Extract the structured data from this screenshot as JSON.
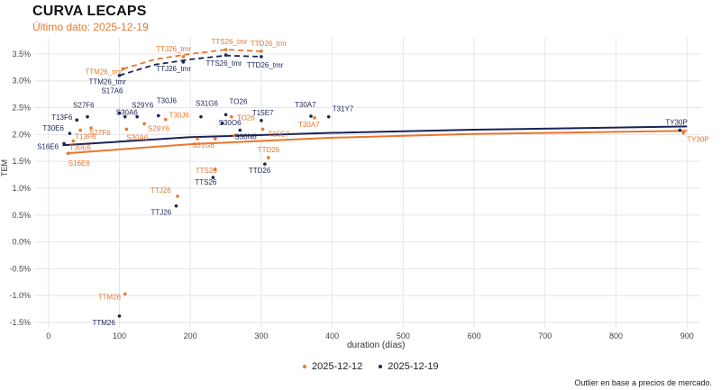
{
  "title": "CURVA LECAPS",
  "subtitle": "Último dato: 2025-12-19",
  "caption": "Outlier en base a precios de mercado.",
  "colors": {
    "orange": "#e8772e",
    "navy": "#1a2456",
    "grid": "#e6e6e6"
  },
  "chart_data": {
    "type": "scatter",
    "title": "CURVA LECAPS",
    "xlabel": "duration (días)",
    "ylabel": "TEM",
    "xlim": [
      -20,
      920
    ],
    "ylim": [
      -1.6,
      3.8
    ],
    "x_ticks": [
      0,
      100,
      200,
      300,
      400,
      500,
      600,
      700,
      800,
      900
    ],
    "y_ticks": [
      -1.5,
      -1.0,
      -0.5,
      0.0,
      0.5,
      1.0,
      1.5,
      2.0,
      2.5,
      3.0,
      3.5
    ],
    "y_tick_labels": [
      "-1.5%",
      "-1.0%",
      "-0.5%",
      "0.0%",
      "0.5%",
      "1.0%",
      "1.5%",
      "2.0%",
      "2.5%",
      "3.0%",
      "3.5%"
    ],
    "legend": [
      "2025-12-12",
      "2025-12-19"
    ],
    "series": [
      {
        "name": "2025-12-19",
        "color": "navy",
        "points": [
          {
            "label": "S16E6",
            "x": 22,
            "y": 1.83
          },
          {
            "label": "T30E6",
            "x": 30,
            "y": 2.02
          },
          {
            "label": "T13F6",
            "x": 40,
            "y": 2.27
          },
          {
            "label": "S27F6",
            "x": 55,
            "y": 2.33
          },
          {
            "label": "S17A6",
            "x": 100,
            "y": 2.4
          },
          {
            "label": "S30A6",
            "x": 108,
            "y": 2.33
          },
          {
            "label": "S29Y6",
            "x": 125,
            "y": 2.33
          },
          {
            "label": "T30J6",
            "x": 155,
            "y": 2.35
          },
          {
            "label": "S31G6",
            "x": 215,
            "y": 2.33
          },
          {
            "label": "S30O6",
            "x": 245,
            "y": 2.21
          },
          {
            "label": "TO26",
            "x": 250,
            "y": 2.37
          },
          {
            "label": "S30N6",
            "x": 270,
            "y": 2.08
          },
          {
            "label": "T15E7",
            "x": 300,
            "y": 2.26
          },
          {
            "label": "T30A7",
            "x": 370,
            "y": 2.34
          },
          {
            "label": "T31Y7",
            "x": 395,
            "y": 2.33
          },
          {
            "label": "TY30P",
            "x": 890,
            "y": 2.08
          },
          {
            "label": "TTS26",
            "x": 232,
            "y": 1.2
          },
          {
            "label": "TTD26",
            "x": 305,
            "y": 1.45
          },
          {
            "label": "TTJ26",
            "x": 180,
            "y": 0.67
          },
          {
            "label": "TTM26",
            "x": 100,
            "y": -1.38
          },
          {
            "label": "TTM26_tmr",
            "x": 100,
            "y": 3.1
          },
          {
            "label": "TTJ26_tmr",
            "x": 190,
            "y": 3.35
          },
          {
            "label": "TTS26_tmr",
            "x": 250,
            "y": 3.48
          },
          {
            "label": "TTD26_tmr",
            "x": 300,
            "y": 3.45
          }
        ],
        "fit": [
          [
            20,
            1.8
          ],
          [
            200,
            1.95
          ],
          [
            400,
            2.03
          ],
          [
            600,
            2.09
          ],
          [
            800,
            2.13
          ],
          [
            900,
            2.15
          ]
        ]
      },
      {
        "name": "2025-12-12",
        "color": "orange",
        "points": [
          {
            "label": "S16E6",
            "x": 28,
            "y": 1.65
          },
          {
            "label": "T30E6",
            "x": 35,
            "y": 1.88
          },
          {
            "label": "T13F6",
            "x": 45,
            "y": 2.08
          },
          {
            "label": "S27F6",
            "x": 60,
            "y": 2.12
          },
          {
            "label": "S30A6",
            "x": 110,
            "y": 2.1
          },
          {
            "label": "S29Y6",
            "x": 135,
            "y": 2.2
          },
          {
            "label": "T30J6",
            "x": 165,
            "y": 2.28
          },
          {
            "label": "S31G6",
            "x": 210,
            "y": 1.92
          },
          {
            "label": "S30O6",
            "x": 235,
            "y": 1.92
          },
          {
            "label": "TO26",
            "x": 258,
            "y": 2.33
          },
          {
            "label": "S30N6",
            "x": 262,
            "y": 1.98
          },
          {
            "label": "T15E7",
            "x": 302,
            "y": 2.1
          },
          {
            "label": "T30A7",
            "x": 375,
            "y": 2.31
          },
          {
            "label": "TY30P",
            "x": 895,
            "y": 2.03
          },
          {
            "label": "TTS26",
            "x": 235,
            "y": 1.35
          },
          {
            "label": "TTD26",
            "x": 310,
            "y": 1.57
          },
          {
            "label": "TTJ26",
            "x": 182,
            "y": 0.85
          },
          {
            "label": "TTM26",
            "x": 108,
            "y": -0.97
          },
          {
            "label": "TTM26_tmr",
            "x": 105,
            "y": 3.22
          },
          {
            "label": "TTJ26_tmr",
            "x": 190,
            "y": 3.45
          },
          {
            "label": "TTS26_tmr",
            "x": 250,
            "y": 3.58
          },
          {
            "label": "TTD26_tmr",
            "x": 300,
            "y": 3.55
          }
        ],
        "fit": [
          [
            25,
            1.65
          ],
          [
            200,
            1.82
          ],
          [
            400,
            1.94
          ],
          [
            600,
            2.01
          ],
          [
            800,
            2.05
          ],
          [
            900,
            2.07
          ]
        ]
      }
    ],
    "tmr_curves": [
      {
        "series": "2025-12-19",
        "points": [
          [
            100,
            3.1
          ],
          [
            150,
            3.3
          ],
          [
            200,
            3.4
          ],
          [
            250,
            3.47
          ],
          [
            300,
            3.45
          ]
        ]
      },
      {
        "series": "2025-12-12",
        "points": [
          [
            105,
            3.22
          ],
          [
            150,
            3.4
          ],
          [
            200,
            3.5
          ],
          [
            250,
            3.58
          ],
          [
            300,
            3.55
          ]
        ]
      }
    ],
    "annotations": [
      {
        "series": "2025-12-19",
        "text": "S16E6"
      },
      {
        "series": "2025-12-19",
        "text": "T30E6"
      },
      {
        "series": "2025-12-19",
        "text": "T13F6"
      },
      {
        "series": "2025-12-19",
        "text": "S27F6"
      },
      {
        "series": "2025-12-19",
        "text": "S17A6"
      },
      {
        "series": "2025-12-19",
        "text": "S30A6"
      },
      {
        "series": "2025-12-19",
        "text": "S29Y6"
      },
      {
        "series": "2025-12-19",
        "text": "T30J6"
      },
      {
        "series": "2025-12-19",
        "text": "S31G6"
      },
      {
        "series": "2025-12-19",
        "text": "S30O6"
      },
      {
        "series": "2025-12-19",
        "text": "TO26"
      },
      {
        "series": "2025-12-19",
        "text": "S30N6"
      },
      {
        "series": "2025-12-19",
        "text": "T15E7"
      },
      {
        "series": "2025-12-19",
        "text": "T30A7"
      },
      {
        "series": "2025-12-19",
        "text": "T31Y7"
      },
      {
        "series": "2025-12-19",
        "text": "TY30P"
      },
      {
        "series": "2025-12-19",
        "text": "TTS26"
      },
      {
        "series": "2025-12-19",
        "text": "TTD26"
      },
      {
        "series": "2025-12-19",
        "text": "TTJ26"
      },
      {
        "series": "2025-12-19",
        "text": "TTM26"
      },
      {
        "series": "2025-12-19",
        "text": "TTM26_tmr"
      },
      {
        "series": "2025-12-19",
        "text": "TTJ26_tmr"
      },
      {
        "series": "2025-12-19",
        "text": "TTS26_tmr"
      },
      {
        "series": "2025-12-19",
        "text": "TTD26_tmr"
      },
      {
        "series": "2025-12-12",
        "text": "S16E6"
      },
      {
        "series": "2025-12-12",
        "text": "T30E6"
      },
      {
        "series": "2025-12-12",
        "text": "T13F6"
      },
      {
        "series": "2025-12-12",
        "text": "S27F6"
      },
      {
        "series": "2025-12-12",
        "text": "S30A6"
      },
      {
        "series": "2025-12-12",
        "text": "S29Y6"
      },
      {
        "series": "2025-12-12",
        "text": "T30J6"
      },
      {
        "series": "2025-12-12",
        "text": "S31G6"
      },
      {
        "series": "2025-12-12",
        "text": "TO26"
      },
      {
        "series": "2025-12-12",
        "text": "T15E7"
      },
      {
        "series": "2025-12-12",
        "text": "T30A7"
      },
      {
        "series": "2025-12-12",
        "text": "TY30P"
      },
      {
        "series": "2025-12-12",
        "text": "TTS26"
      },
      {
        "series": "2025-12-12",
        "text": "TTD26"
      },
      {
        "series": "2025-12-12",
        "text": "TTJ26"
      },
      {
        "series": "2025-12-12",
        "text": "TTM26"
      },
      {
        "series": "2025-12-12",
        "text": "TTM26_tmr"
      },
      {
        "series": "2025-12-12",
        "text": "TTJ26_tmr"
      },
      {
        "series": "2025-12-12",
        "text": "TTS26_tmr"
      },
      {
        "series": "2025-12-12",
        "text": "TTD26_tmr"
      }
    ]
  }
}
